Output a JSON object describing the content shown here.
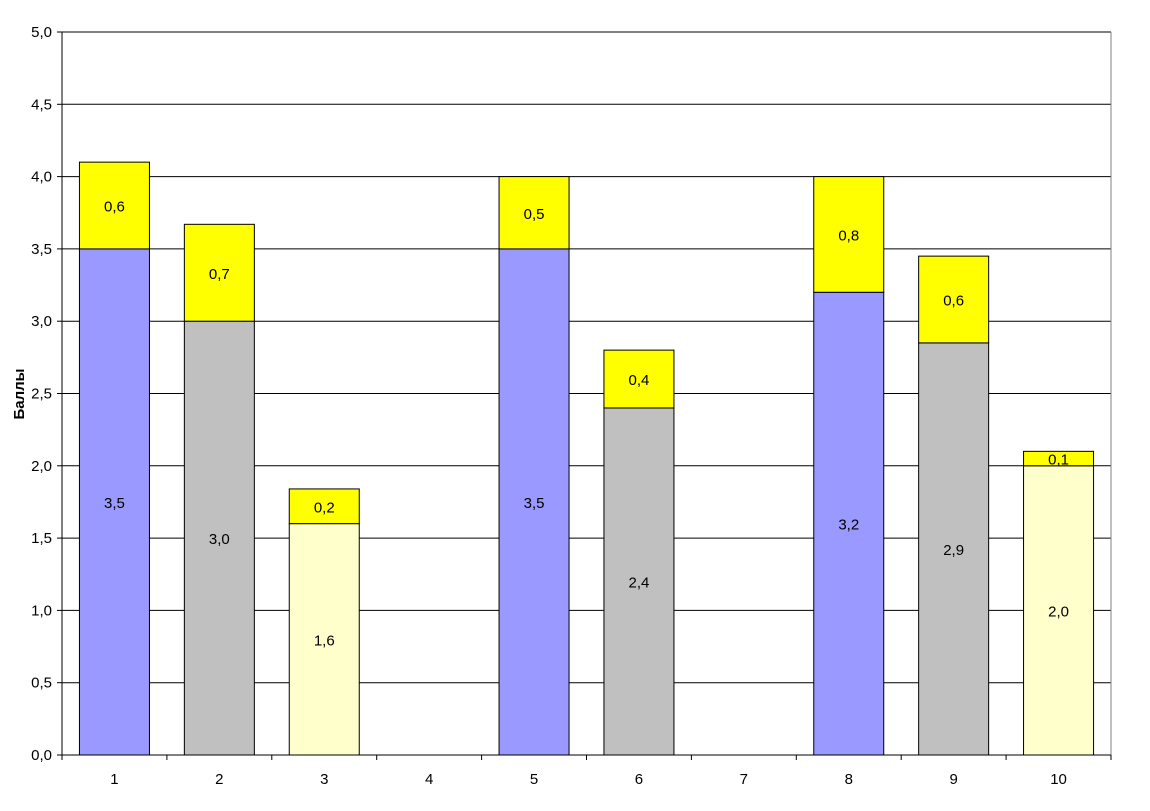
{
  "chart_data": {
    "type": "bar",
    "stacked": true,
    "categories": [
      "1",
      "2",
      "3",
      "4",
      "5",
      "6",
      "7",
      "8",
      "9",
      "10"
    ],
    "ylabel": "Баллы",
    "xlabel": "",
    "ylim": [
      0,
      5
    ],
    "ytick_labels": [
      "0,0",
      "0,5",
      "1,0",
      "1,5",
      "2,0",
      "2,5",
      "3,0",
      "3,5",
      "4,0",
      "4,5",
      "5,0"
    ],
    "grid": true,
    "legend": "none",
    "series": [
      {
        "values": [
          3.5,
          3.0,
          1.6,
          null,
          3.5,
          2.4,
          null,
          3.2,
          2.85,
          2.0
        ],
        "labels": [
          "3,5",
          "3,0",
          "1,6",
          "",
          "3,5",
          "2,4",
          "",
          "3,2",
          "2,9",
          "2,0"
        ],
        "colors": [
          "#9999ff",
          "#c0c0c0",
          "#ffffcc",
          "",
          "#9999ff",
          "#c0c0c0",
          "",
          "#9999ff",
          "#c0c0c0",
          "#ffffcc"
        ]
      },
      {
        "values": [
          0.6,
          0.67,
          0.24,
          null,
          0.5,
          0.4,
          null,
          0.8,
          0.6,
          0.1
        ],
        "labels": [
          "0,6",
          "0,7",
          "0,2",
          "",
          "0,5",
          "0,4",
          "",
          "0,8",
          "0,6",
          "0,1"
        ],
        "color": "#ffff00"
      }
    ]
  }
}
